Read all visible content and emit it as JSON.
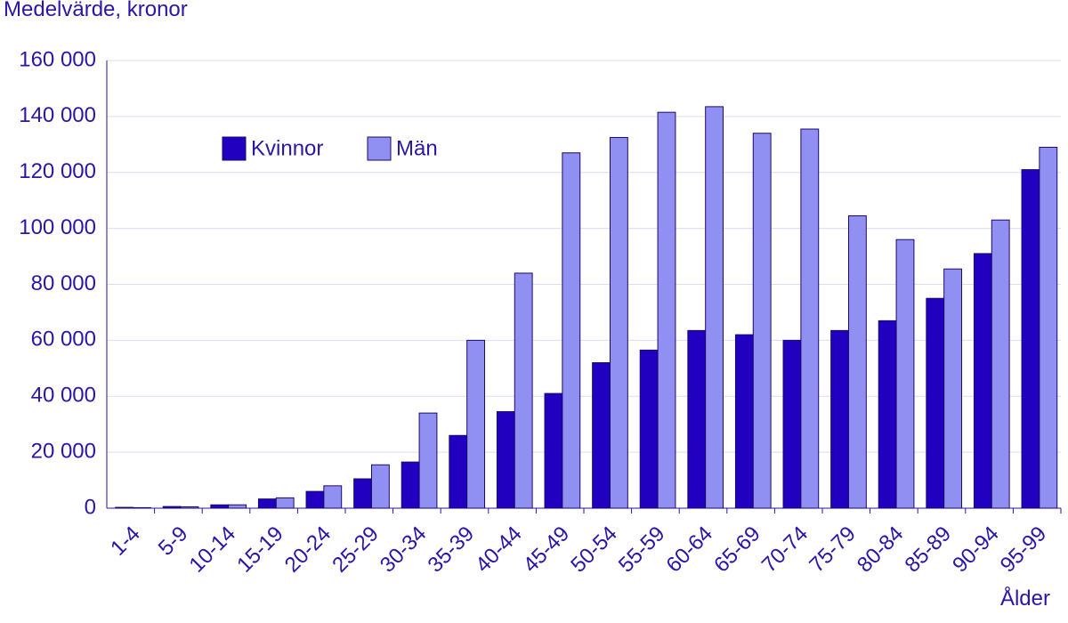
{
  "chart_data": {
    "type": "bar",
    "title": "Medelvärde, kronor",
    "x_label": "Ålder",
    "categories": [
      "1-4",
      "5-9",
      "10-14",
      "15-19",
      "20-24",
      "25-29",
      "30-34",
      "35-39",
      "40-44",
      "45-49",
      "50-54",
      "55-59",
      "60-64",
      "65-69",
      "70-74",
      "75-79",
      "80-84",
      "85-89",
      "90-94",
      "95-99"
    ],
    "series": [
      {
        "name": "Kvinnor",
        "color": "#2200c0",
        "values": [
          300,
          600,
          1200,
          3300,
          6000,
          10500,
          16500,
          26000,
          34500,
          41000,
          52000,
          56500,
          63500,
          62000,
          60000,
          63500,
          67000,
          75000,
          91000,
          121000
        ]
      },
      {
        "name": "Män",
        "color": "#9090f2",
        "values": [
          200,
          500,
          1200,
          3700,
          8000,
          15500,
          34000,
          60000,
          84000,
          127000,
          132500,
          141500,
          143500,
          134000,
          135500,
          104500,
          96000,
          85500,
          103000,
          129000
        ]
      }
    ],
    "ylim": [
      0,
      160000
    ],
    "yticks": [
      0,
      {
        "value": 20000,
        "label": "20 000"
      },
      {
        "value": 40000,
        "label": "40 000"
      },
      {
        "value": 60000,
        "label": "60 000"
      },
      {
        "value": 80000,
        "label": "80 000"
      },
      {
        "value": 100000,
        "label": "100 000"
      },
      {
        "value": 120000,
        "label": "120 000"
      },
      {
        "value": 140000,
        "label": "140 000"
      },
      {
        "value": 160000,
        "label": "160 000"
      }
    ],
    "grid": true
  }
}
